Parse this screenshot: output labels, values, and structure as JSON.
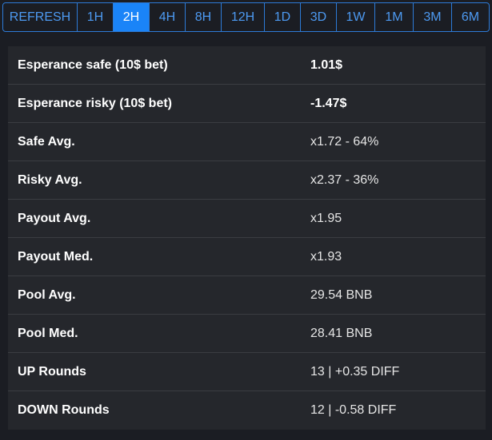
{
  "toolbar": {
    "buttons": [
      "REFRESH",
      "1H",
      "2H",
      "4H",
      "8H",
      "12H",
      "1D",
      "3D",
      "1W",
      "1M",
      "3M",
      "6M"
    ],
    "active": "2H"
  },
  "stats": [
    {
      "label": "Esperance safe (10$ bet)",
      "value": "1.01$"
    },
    {
      "label": "Esperance risky (10$ bet)",
      "value": "-1.47$"
    },
    {
      "label": "Safe Avg.",
      "value": "x1.72 - 64%"
    },
    {
      "label": "Risky Avg.",
      "value": "x2.37 - 36%"
    },
    {
      "label": "Payout Avg.",
      "value": "x1.95"
    },
    {
      "label": "Payout Med.",
      "value": "x1.93"
    },
    {
      "label": "Pool Avg.",
      "value": "29.54 BNB"
    },
    {
      "label": "Pool Med.",
      "value": "28.41 BNB"
    },
    {
      "label": "UP Rounds",
      "value": "13 | +0.35 DIFF"
    },
    {
      "label": "DOWN Rounds",
      "value": "12 | -0.58 DIFF"
    }
  ]
}
